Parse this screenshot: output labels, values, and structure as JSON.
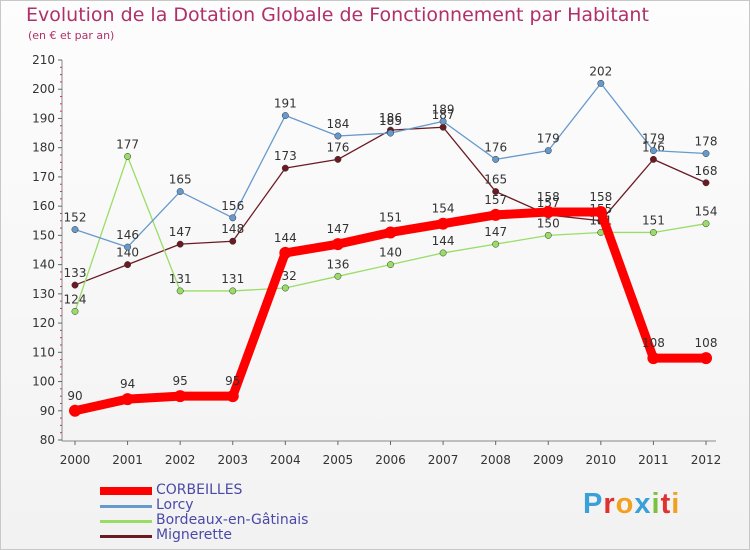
{
  "header": {
    "title": "Evolution de la Dotation Globale de Fonctionnement par Habitant",
    "subtitle": "(en € et par an)"
  },
  "chart_data": {
    "type": "line",
    "title": "Evolution de la Dotation Globale de Fonctionnement par Habitant",
    "ylabel": "(en € et par an)",
    "xlabel": "",
    "ylim": [
      80,
      210
    ],
    "yticks": [
      80,
      90,
      100,
      110,
      120,
      130,
      140,
      150,
      160,
      170,
      180,
      190,
      200,
      210
    ],
    "categories": [
      "2000",
      "2001",
      "2002",
      "2003",
      "2004",
      "2005",
      "2006",
      "2007",
      "2008",
      "2009",
      "2010",
      "2011",
      "2012"
    ],
    "grid": false,
    "series": [
      {
        "name": "Mignerette",
        "color": "#6b1a22",
        "values": [
          133,
          140,
          147,
          148,
          173,
          176,
          186,
          187,
          165,
          157,
          155,
          176,
          168
        ]
      },
      {
        "name": "Bordeaux-en-Gâtinais",
        "color": "#99dd66",
        "values": [
          124,
          177,
          131,
          131,
          132,
          136,
          140,
          144,
          147,
          150,
          151,
          151,
          154
        ]
      },
      {
        "name": "Lorcy",
        "color": "#6699cc",
        "values": [
          152,
          146,
          165,
          156,
          191,
          184,
          185,
          189,
          176,
          179,
          202,
          179,
          178
        ]
      },
      {
        "name": "CORBEILLES",
        "color": "#ff0000",
        "values": [
          90,
          94,
          95,
          95,
          144,
          147,
          151,
          154,
          157,
          158,
          158,
          108,
          108
        ]
      }
    ]
  },
  "legend": {
    "items": [
      {
        "name": "CORBEILLES",
        "color": "#ff0000"
      },
      {
        "name": "Lorcy",
        "color": "#6699cc"
      },
      {
        "name": "Bordeaux-en-Gâtinais",
        "color": "#99dd66"
      },
      {
        "name": "Mignerette",
        "color": "#6b1a22"
      }
    ]
  },
  "logo": {
    "text": "Proxiti",
    "letters": [
      "P",
      "r",
      "o",
      "x",
      "i",
      "t",
      "i"
    ],
    "colors": [
      "#3aa0d8",
      "#e03030",
      "#f2a020",
      "#3aa0d8",
      "#7cc040",
      "#e03030",
      "#f2a020"
    ]
  }
}
